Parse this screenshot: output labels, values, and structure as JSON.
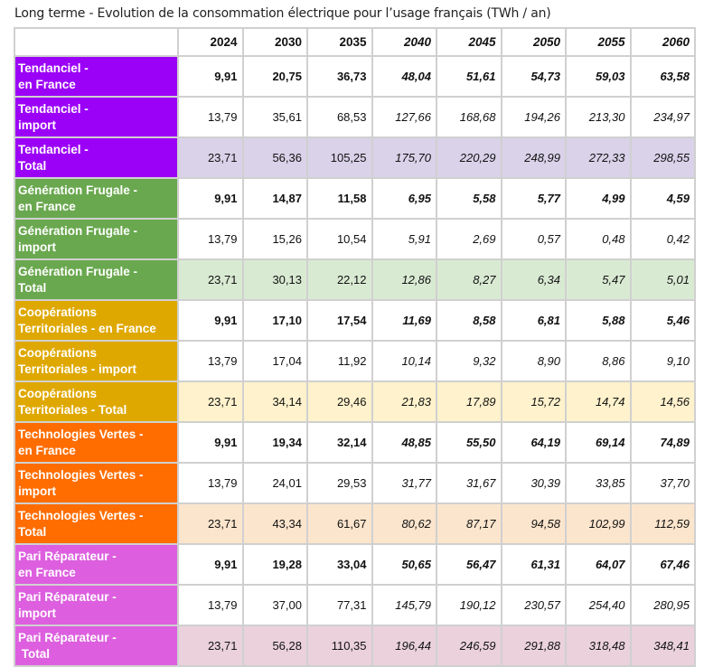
{
  "title": "Long terme - Evolution de la consommation électrique pour l’usage français (TWh / an)",
  "years": [
    "2024",
    "2030",
    "2035",
    "2040",
    "2045",
    "2050",
    "2055",
    "2060"
  ],
  "italic_from_year": "2040",
  "groups": [
    {
      "color": "#9b00f7",
      "total_bg": "#d9d2e9",
      "rows": [
        {
          "label": [
            "Tendanciel -",
            "en France"
          ],
          "type": "en-france",
          "values": [
            "9,91",
            "20,75",
            "36,73",
            "48,04",
            "51,61",
            "54,73",
            "59,03",
            "63,58"
          ]
        },
        {
          "label": [
            "Tendanciel -",
            "import"
          ],
          "type": "import",
          "values": [
            "13,79",
            "35,61",
            "68,53",
            "127,66",
            "168,68",
            "194,26",
            "213,30",
            "234,97"
          ]
        },
        {
          "label": [
            "Tendanciel -",
            "Total"
          ],
          "type": "total",
          "values": [
            "23,71",
            "56,36",
            "105,25",
            "175,70",
            "220,29",
            "248,99",
            "272,33",
            "298,55"
          ]
        }
      ]
    },
    {
      "color": "#6aa84f",
      "total_bg": "#d9ead3",
      "rows": [
        {
          "label": [
            "Génération Frugale -",
            "en France"
          ],
          "type": "en-france",
          "values": [
            "9,91",
            "14,87",
            "11,58",
            "6,95",
            "5,58",
            "5,77",
            "4,99",
            "4,59"
          ]
        },
        {
          "label": [
            "Génération Frugale -",
            "import"
          ],
          "type": "import",
          "values": [
            "13,79",
            "15,26",
            "10,54",
            "5,91",
            "2,69",
            "0,57",
            "0,48",
            "0,42"
          ]
        },
        {
          "label": [
            "Génération Frugale -",
            "Total"
          ],
          "type": "total",
          "values": [
            "23,71",
            "30,13",
            "22,12",
            "12,86",
            "8,27",
            "6,34",
            "5,47",
            "5,01"
          ]
        }
      ]
    },
    {
      "color": "#dfa800",
      "total_bg": "#fff2cc",
      "rows": [
        {
          "label": [
            "Coopérations",
            "Territoriales - en France"
          ],
          "type": "en-france",
          "values": [
            "9,91",
            "17,10",
            "17,54",
            "11,69",
            "8,58",
            "6,81",
            "5,88",
            "5,46"
          ]
        },
        {
          "label": [
            "Coopérations",
            "Territoriales - import"
          ],
          "type": "import",
          "values": [
            "13,79",
            "17,04",
            "11,92",
            "10,14",
            "9,32",
            "8,90",
            "8,86",
            "9,10"
          ]
        },
        {
          "label": [
            "Coopérations",
            "Territoriales - Total"
          ],
          "type": "total",
          "values": [
            "23,71",
            "34,14",
            "29,46",
            "21,83",
            "17,89",
            "15,72",
            "14,74",
            "14,56"
          ]
        }
      ]
    },
    {
      "color": "#ff6d01",
      "total_bg": "#fce5cd",
      "rows": [
        {
          "label": [
            "Technologies Vertes -",
            "en France"
          ],
          "type": "en-france",
          "values": [
            "9,91",
            "19,34",
            "32,14",
            "48,85",
            "55,50",
            "64,19",
            "69,14",
            "74,89"
          ]
        },
        {
          "label": [
            "Technologies Vertes -",
            "import"
          ],
          "type": "import",
          "values": [
            "13,79",
            "24,01",
            "29,53",
            "31,77",
            "31,67",
            "30,39",
            "33,85",
            "37,70"
          ]
        },
        {
          "label": [
            "Technologies Vertes -",
            "Total"
          ],
          "type": "total",
          "values": [
            "23,71",
            "43,34",
            "61,67",
            "80,62",
            "87,17",
            "94,58",
            "102,99",
            "112,59"
          ]
        }
      ]
    },
    {
      "color": "#dd5fdf",
      "total_bg": "#ead1dc",
      "rows": [
        {
          "label": [
            "Pari Réparateur -",
            "en France"
          ],
          "type": "en-france",
          "values": [
            "9,91",
            "19,28",
            "33,04",
            "50,65",
            "56,47",
            "61,31",
            "64,07",
            "67,46"
          ]
        },
        {
          "label": [
            "Pari Réparateur -",
            "import"
          ],
          "type": "import",
          "values": [
            "13,79",
            "37,00",
            "77,31",
            "145,79",
            "190,12",
            "230,57",
            "254,40",
            "280,95"
          ]
        },
        {
          "label": [
            "Pari Réparateur -",
            " Total"
          ],
          "type": "total",
          "values": [
            "23,71",
            "56,28",
            "110,35",
            "196,44",
            "246,59",
            "291,88",
            "318,48",
            "348,41"
          ]
        }
      ]
    }
  ]
}
